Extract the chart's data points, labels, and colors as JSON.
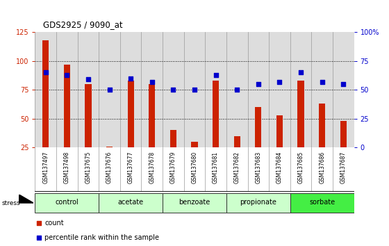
{
  "title": "GDS2925 / 9090_at",
  "samples": [
    "GSM137497",
    "GSM137498",
    "GSM137675",
    "GSM137676",
    "GSM137677",
    "GSM137678",
    "GSM137679",
    "GSM137680",
    "GSM137681",
    "GSM137682",
    "GSM137683",
    "GSM137684",
    "GSM137685",
    "GSM137686",
    "GSM137687"
  ],
  "counts": [
    118,
    97,
    80,
    26,
    83,
    80,
    40,
    30,
    83,
    35,
    60,
    53,
    83,
    63,
    48
  ],
  "percentiles": [
    65,
    63,
    59,
    50,
    60,
    57,
    50,
    50,
    63,
    50,
    55,
    57,
    65,
    57,
    55
  ],
  "groups": [
    {
      "label": "control",
      "start": 0,
      "end": 2,
      "color": "#ccffcc"
    },
    {
      "label": "acetate",
      "start": 3,
      "end": 5,
      "color": "#ccffcc"
    },
    {
      "label": "benzoate",
      "start": 6,
      "end": 8,
      "color": "#ccffcc"
    },
    {
      "label": "propionate",
      "start": 9,
      "end": 11,
      "color": "#ccffcc"
    },
    {
      "label": "sorbate",
      "start": 12,
      "end": 14,
      "color": "#44ee44"
    }
  ],
  "ylim_left": [
    25,
    125
  ],
  "ylim_right": [
    0,
    100
  ],
  "bar_color": "#cc2200",
  "dot_color": "#0000cc",
  "background_color": "#ffffff",
  "plot_bg_color": "#dddddd",
  "xtick_bg_color": "#cccccc",
  "grid_color": "#000000",
  "tick_color_left": "#cc2200",
  "tick_color_right": "#0000cc",
  "yticks_left": [
    25,
    50,
    75,
    100,
    125
  ],
  "yticks_right": [
    0,
    25,
    50,
    75,
    100
  ],
  "ytick_labels_right": [
    "0",
    "25",
    "50",
    "75",
    "100%"
  ],
  "group_border_color": "#333333",
  "col_sep_color": "#999999"
}
